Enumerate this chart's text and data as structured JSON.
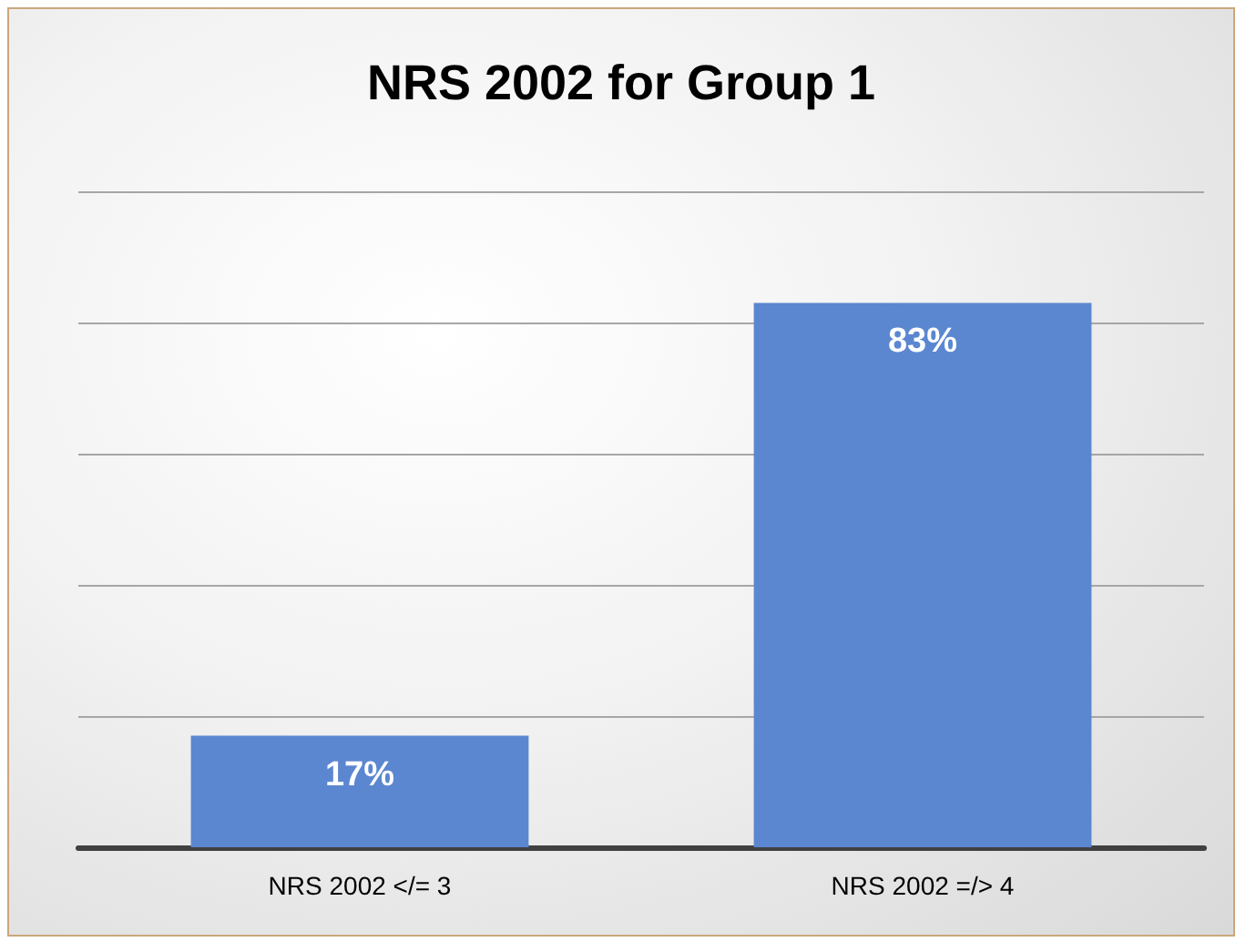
{
  "chart_data": {
    "type": "bar",
    "title": "NRS 2002 for Group 1",
    "categories": [
      "NRS 2002 </= 3",
      "NRS 2002 =/> 4"
    ],
    "values": [
      17,
      83
    ],
    "color": "#5b87d0",
    "value_labels": [
      "17%",
      "83%"
    ],
    "ylim": [
      0,
      100
    ],
    "yticks": [
      {
        "value": 0,
        "label": null
      },
      {
        "value": 20,
        "label": null
      },
      {
        "value": 40,
        "label": null
      },
      {
        "value": 60,
        "label": null
      },
      {
        "value": 80,
        "label": null
      },
      {
        "value": 100,
        "label": null
      }
    ],
    "tick_labels": "x",
    "grid": "y"
  }
}
